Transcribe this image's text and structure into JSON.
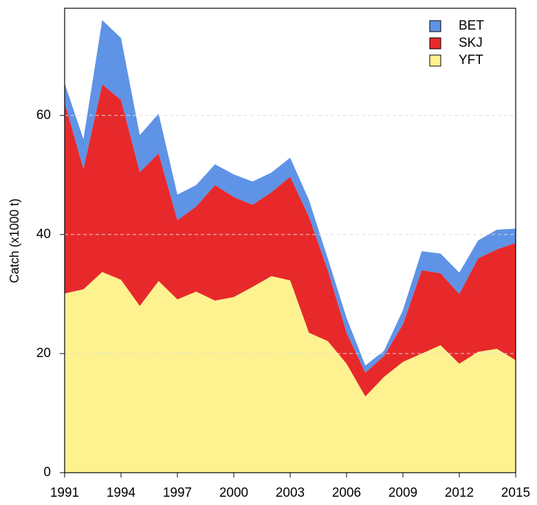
{
  "chart_data": {
    "type": "stacked-area",
    "y_label": "Catch (x1000 t)",
    "x": [
      1991,
      1992,
      1993,
      1994,
      1995,
      1996,
      1997,
      1998,
      1999,
      2000,
      2001,
      2002,
      2003,
      2004,
      2005,
      2006,
      2007,
      2008,
      2009,
      2010,
      2011,
      2012,
      2013,
      2014,
      2015
    ],
    "series": [
      {
        "name": "YFT",
        "color": "#fdf28f",
        "values": [
          30.1,
          30.8,
          33.7,
          32.4,
          28.0,
          32.2,
          29.1,
          30.4,
          28.9,
          29.5,
          31.2,
          33.0,
          32.3,
          23.5,
          22.1,
          18.3,
          12.8,
          16.1,
          18.6,
          20.0,
          21.4,
          18.3,
          20.3,
          20.8,
          18.9
        ]
      },
      {
        "name": "SKJ",
        "color": "#e8292b",
        "values": [
          32.1,
          20.2,
          31.5,
          30.2,
          22.5,
          21.4,
          13.3,
          14.3,
          19.4,
          16.8,
          13.8,
          14.1,
          17.4,
          19.5,
          11.9,
          5.2,
          4.0,
          3.5,
          6.3,
          14.0,
          12.1,
          11.7,
          15.7,
          16.7,
          19.7
        ]
      },
      {
        "name": "BET",
        "color": "#5f93e6",
        "values": [
          3.2,
          5.0,
          10.8,
          10.4,
          6.2,
          6.7,
          4.3,
          3.6,
          3.5,
          3.8,
          3.9,
          3.3,
          3.2,
          2.8,
          2.0,
          2.5,
          1.2,
          0.9,
          2.4,
          3.2,
          3.3,
          3.6,
          3.0,
          3.3,
          2.4
        ]
      }
    ],
    "xlim": [
      1991,
      2015
    ],
    "xticks": [
      1991,
      1994,
      1997,
      2000,
      2003,
      2006,
      2009,
      2012,
      2015
    ],
    "ylim": [
      0,
      78
    ],
    "yticks": [
      0,
      20,
      40,
      60
    ],
    "grid": true,
    "legend": "top-right"
  }
}
